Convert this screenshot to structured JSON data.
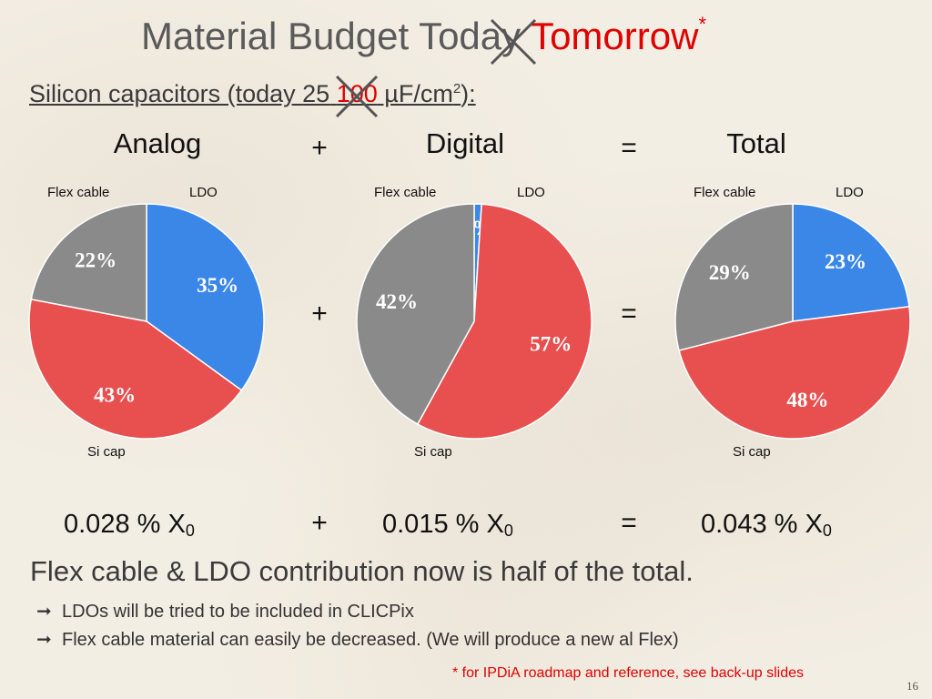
{
  "title": {
    "old": "Material Budget Today",
    "new": "Tomorrow",
    "mark": "*"
  },
  "subtitle": {
    "prefix": "Silicon capacitors (today ",
    "old": "25",
    "new": "100",
    "suffix": " µF/cm",
    "sup": "2",
    "end": "):"
  },
  "headers": {
    "analog": "Analog",
    "digital": "Digital",
    "total": "Total",
    "plus": "+",
    "equals": "="
  },
  "colors": {
    "ldo": "#3a87e8",
    "si_cap": "#e85050",
    "flex_cable": "#8a8a8a",
    "strike": "#555555"
  },
  "chart_data": [
    {
      "type": "pie",
      "name": "Analog",
      "labels": [
        "LDO",
        "Si cap",
        "Flex cable"
      ],
      "values": [
        35,
        43,
        22
      ],
      "value_labels": [
        "35%",
        "43%",
        "22%"
      ],
      "start_angle_deg": 0,
      "direction": "clockwise"
    },
    {
      "type": "pie",
      "name": "Digital",
      "labels": [
        "LDO",
        "Si cap",
        "Flex cable"
      ],
      "values": [
        1,
        57,
        42
      ],
      "value_labels": [
        "1%",
        "57%",
        "42%"
      ],
      "start_angle_deg": 0,
      "direction": "clockwise"
    },
    {
      "type": "pie",
      "name": "Total",
      "labels": [
        "LDO",
        "Si cap",
        "Flex cable"
      ],
      "values": [
        23,
        48,
        29
      ],
      "value_labels": [
        "23%",
        "48%",
        "29%"
      ],
      "start_angle_deg": 0,
      "direction": "clockwise"
    }
  ],
  "slice_labels": {
    "flex": "Flex cable",
    "ldo": "LDO",
    "sicap": "Si cap"
  },
  "values": {
    "analog": {
      "num": "0.028 % X",
      "sub": "0"
    },
    "digital": {
      "num": "0.015 % X",
      "sub": "0"
    },
    "total": {
      "num": "0.043 % X",
      "sub": "0"
    }
  },
  "conclusion": "Flex cable & LDO contribution now is half of the total.",
  "bullets": [
    "LDOs will be tried to be included in CLICPix",
    "Flex cable material can easily be decreased. (We will produce a new al Flex)"
  ],
  "arrow": "➞",
  "footnote": "* for IPDiA roadmap and reference, see back-up slides",
  "page_number": "16"
}
